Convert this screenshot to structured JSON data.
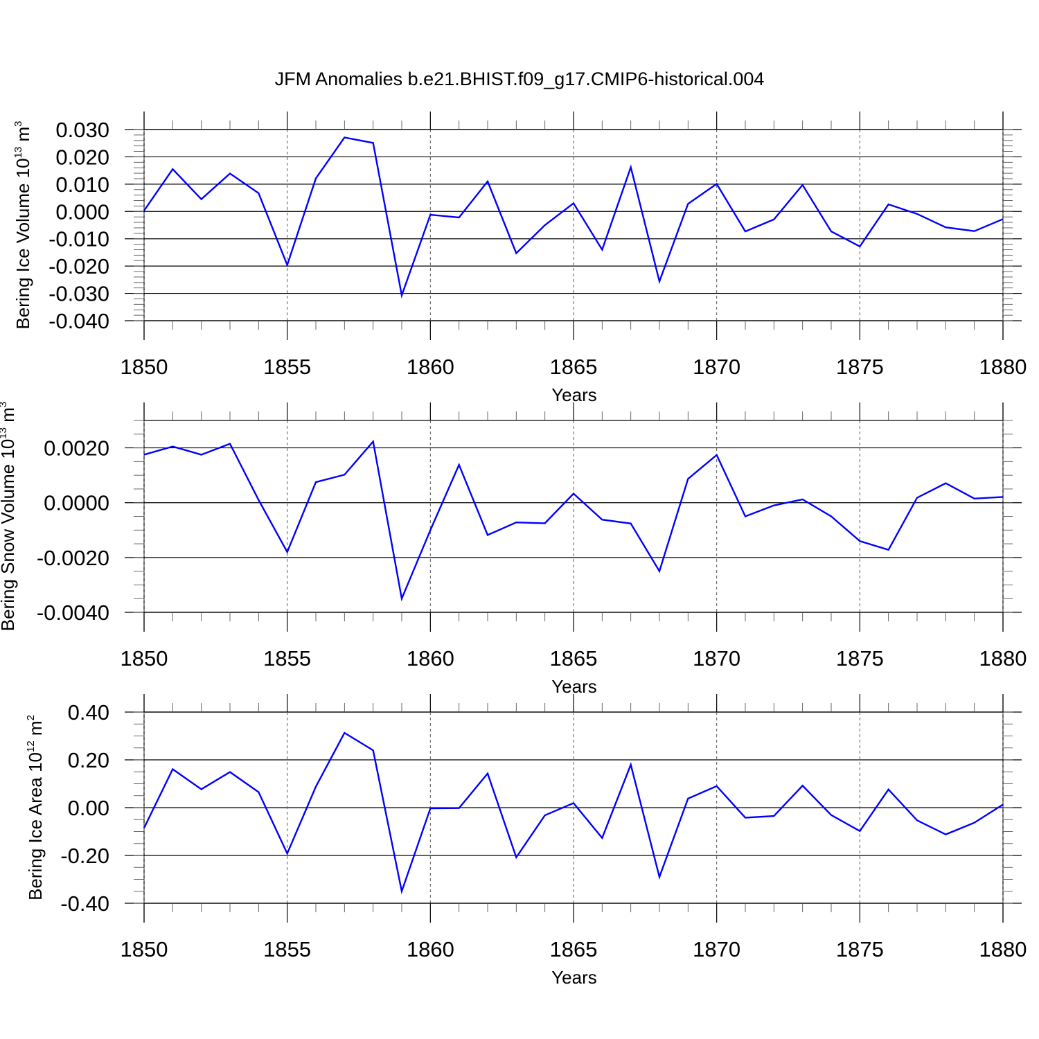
{
  "title": "JFM Anomalies b.e21.BHIST.f09_g17.CMIP6-historical.004",
  "colors": {
    "line": "#0000ff",
    "axis": "#000000",
    "grid": "#555555"
  },
  "chart_data": [
    {
      "type": "line",
      "xlabel": "Years",
      "ylabel": {
        "text": "Bering Ice Volume 10",
        "exp": "13",
        "unit": " m",
        "unit_exp": "3"
      },
      "xlim": [
        1850,
        1880
      ],
      "ylim": [
        -0.04,
        0.03
      ],
      "x_ticks": [
        1850,
        1855,
        1860,
        1865,
        1870,
        1875,
        1880
      ],
      "x_tick_labels": [
        "1850",
        "1855",
        "1860",
        "1865",
        "1870",
        "1875",
        "1880"
      ],
      "y_ticks": [
        -0.04,
        -0.03,
        -0.02,
        -0.01,
        0.0,
        0.01,
        0.02,
        0.03
      ],
      "y_tick_labels": [
        "-0.040",
        "-0.030",
        "-0.020",
        "-0.010",
        "0.000",
        "0.010",
        "0.020",
        "0.030"
      ],
      "y_minor_step": 0.002,
      "grid": "vertical dashed at major x ticks",
      "series": [
        {
          "x": [
            1850,
            1851,
            1852,
            1853,
            1854,
            1855,
            1856,
            1857,
            1858,
            1859,
            1860,
            1861,
            1862,
            1863,
            1864,
            1865,
            1866,
            1867,
            1868,
            1869,
            1870,
            1871,
            1872,
            1873,
            1874,
            1875,
            1876,
            1877,
            1878,
            1879,
            1880
          ],
          "values": [
            0.0003,
            0.0155,
            0.0045,
            0.0139,
            0.0067,
            -0.0196,
            0.0121,
            0.0271,
            0.0251,
            -0.0307,
            -0.0012,
            -0.0022,
            0.011,
            -0.0153,
            -0.005,
            0.003,
            -0.014,
            0.0162,
            -0.0256,
            0.0028,
            0.0101,
            -0.0073,
            -0.0029,
            0.0097,
            -0.0073,
            -0.0128,
            0.0026,
            -0.0009,
            -0.0058,
            -0.0072,
            -0.0028
          ]
        }
      ]
    },
    {
      "type": "line",
      "xlabel": "Years",
      "ylabel": {
        "text": "Bering Snow Volume 10",
        "exp": "13",
        "unit": " m",
        "unit_exp": "3"
      },
      "xlim": [
        1850,
        1880
      ],
      "ylim": [
        -0.004,
        0.003
      ],
      "x_ticks": [
        1850,
        1855,
        1860,
        1865,
        1870,
        1875,
        1880
      ],
      "x_tick_labels": [
        "1850",
        "1855",
        "1860",
        "1865",
        "1870",
        "1875",
        "1880"
      ],
      "y_ticks": [
        -0.004,
        -0.002,
        0.0,
        0.002
      ],
      "y_tick_labels": [
        "-0.0040",
        "-0.0020",
        "0.0000",
        "0.0020"
      ],
      "y_minor_step": 0.0005,
      "grid": "vertical dashed at major x ticks",
      "series": [
        {
          "x": [
            1850,
            1851,
            1852,
            1853,
            1854,
            1855,
            1856,
            1857,
            1858,
            1859,
            1860,
            1861,
            1862,
            1863,
            1864,
            1865,
            1866,
            1867,
            1868,
            1869,
            1870,
            1871,
            1872,
            1873,
            1874,
            1875,
            1876,
            1877,
            1878,
            1879,
            1880
          ],
          "values": [
            0.00175,
            0.00205,
            0.00175,
            0.00215,
            0.0001,
            -0.0018,
            0.00075,
            0.00102,
            0.00223,
            -0.0035,
            -0.001,
            0.00138,
            -0.00118,
            -0.00072,
            -0.00075,
            0.00033,
            -0.00062,
            -0.00076,
            -0.0025,
            0.00087,
            0.00174,
            -0.0005,
            -0.0001,
            0.00012,
            -0.0005,
            -0.0014,
            -0.00172,
            0.00018,
            0.00071,
            0.00015,
            0.00021
          ]
        }
      ]
    },
    {
      "type": "line",
      "xlabel": "Years",
      "ylabel": {
        "text": "Bering Ice Area 10",
        "exp": "12",
        "unit": " m",
        "unit_exp": "2"
      },
      "xlim": [
        1850,
        1880
      ],
      "ylim": [
        -0.4,
        0.4
      ],
      "x_ticks": [
        1850,
        1855,
        1860,
        1865,
        1870,
        1875,
        1880
      ],
      "x_tick_labels": [
        "1850",
        "1855",
        "1860",
        "1865",
        "1870",
        "1875",
        "1880"
      ],
      "y_ticks": [
        -0.4,
        -0.2,
        0.0,
        0.2,
        0.4
      ],
      "y_tick_labels": [
        "-0.40",
        "-0.20",
        "0.00",
        "0.20",
        "0.40"
      ],
      "y_minor_step": 0.05,
      "grid": "vertical dashed at major x ticks",
      "series": [
        {
          "x": [
            1850,
            1851,
            1852,
            1853,
            1854,
            1855,
            1856,
            1857,
            1858,
            1859,
            1860,
            1861,
            1862,
            1863,
            1864,
            1865,
            1866,
            1867,
            1868,
            1869,
            1870,
            1871,
            1872,
            1873,
            1874,
            1875,
            1876,
            1877,
            1878,
            1879,
            1880
          ],
          "values": [
            -0.085,
            0.161,
            0.077,
            0.149,
            0.065,
            -0.192,
            0.088,
            0.313,
            0.24,
            -0.35,
            -0.003,
            -0.002,
            0.143,
            -0.208,
            -0.032,
            0.019,
            -0.127,
            0.18,
            -0.29,
            0.038,
            0.09,
            -0.042,
            -0.035,
            0.092,
            -0.031,
            -0.098,
            0.076,
            -0.053,
            -0.112,
            -0.063,
            0.013
          ]
        }
      ]
    }
  ]
}
